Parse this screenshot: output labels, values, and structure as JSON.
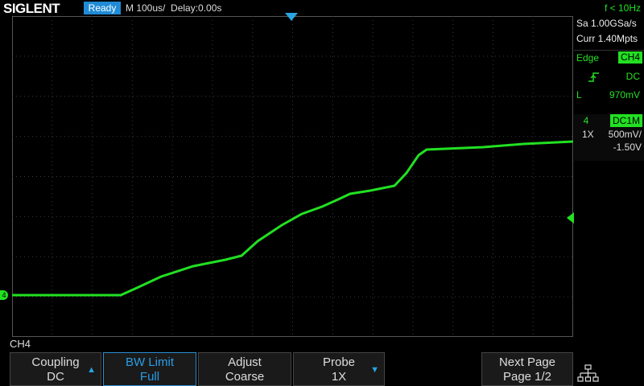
{
  "header": {
    "brand": "SIGLENT",
    "status": "Ready",
    "timebase": "M 100us/",
    "delay": "Delay:0.00s",
    "frequency": "f < 10Hz"
  },
  "acquisition": {
    "sample_rate": "Sa 1.00GSa/s",
    "memory_depth": "Curr 1.40Mpts"
  },
  "trigger": {
    "type": "Edge",
    "source": "CH4",
    "slope_icon": "rising-edge-icon",
    "coupling": "DC",
    "level_label": "L",
    "level": "970mV"
  },
  "channel": {
    "number": "4",
    "coupling": "DC1M",
    "probe": "1X",
    "scale": "500mV/",
    "offset": "-1.50V",
    "ground_marker": "4",
    "color": "#22e022"
  },
  "menu": {
    "title": "CH4",
    "softkeys": [
      {
        "line1": "Coupling",
        "line2": "DC",
        "arrow": "▲"
      },
      {
        "line1": "BW Limit",
        "line2": "Full"
      },
      {
        "line1": "Adjust",
        "line2": "Coarse"
      },
      {
        "line1": "Probe",
        "line2": "1X",
        "arrow": "▼"
      },
      {
        "line1": "Next Page",
        "line2": "Page 1/2"
      }
    ]
  },
  "colors": {
    "accent": "#1f8bd6",
    "trace": "#22e022",
    "grid": "#555555"
  }
}
